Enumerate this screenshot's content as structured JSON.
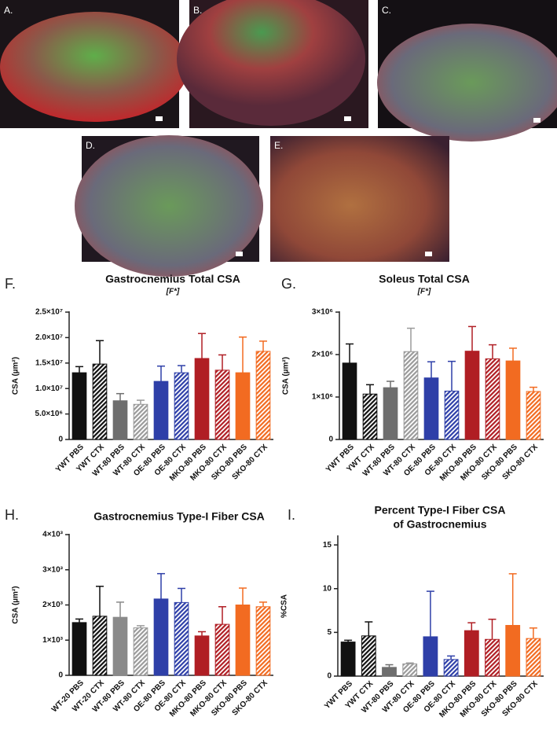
{
  "panels": [
    {
      "label": "A."
    },
    {
      "label": "B."
    },
    {
      "label": "C."
    },
    {
      "label": "D."
    },
    {
      "label": "E."
    }
  ],
  "chart_data": [
    {
      "type": "bar",
      "panel": "F.",
      "title": "Gastrocnemius Total CSA",
      "subtitle": "[F*]",
      "ylabel": "CSA (µm²)",
      "categories": [
        "YWT PBS",
        "YWT CTX",
        "WT-80 PBS",
        "WT-80 CTX",
        "OE-80 PBS",
        "OE-80 CTX",
        "MKO-80 PBS",
        "MKO-80 CTX",
        "SKO-80 PBS",
        "SKO-80 CTX"
      ],
      "values": [
        13100000,
        14800000,
        7600000,
        6900000,
        11400000,
        13100000,
        15900000,
        13600000,
        13100000,
        17300000
      ],
      "errors": [
        1200000,
        4600000,
        1400000,
        800000,
        3000000,
        1400000,
        4900000,
        3000000,
        7000000,
        2000000
      ],
      "colors": [
        "#111111",
        "#111111",
        "#6e6e6e",
        "#9a9a9a",
        "#2e3fa8",
        "#2e3fa8",
        "#b01e24",
        "#b01e24",
        "#f26b21",
        "#f26b21"
      ],
      "hatched": [
        false,
        true,
        false,
        true,
        false,
        true,
        false,
        true,
        false,
        true
      ],
      "ylim": [
        0,
        25000000
      ],
      "yticks": [
        0,
        {
          "value": 5000000,
          "label": "5.0×10⁶"
        },
        {
          "value": 10000000,
          "label": "1.0×10⁷"
        },
        {
          "value": 15000000,
          "label": "1.5×10⁷"
        },
        {
          "value": 20000000,
          "label": "2.0×10⁷"
        },
        {
          "value": 25000000,
          "label": "2.5×10⁷"
        }
      ]
    },
    {
      "type": "bar",
      "panel": "G.",
      "title": "Soleus Total CSA",
      "subtitle": "[F*]",
      "ylabel": "CSA (µm²)",
      "categories": [
        "YWT PBS",
        "YWT CTX",
        "WT-80 PBS",
        "WT-80 CTX",
        "OE-80 PBS",
        "OE-80 CTX",
        "MKO-80 PBS",
        "MKO-80 CTX",
        "SKO-80 PBS",
        "SKO-80 CTX"
      ],
      "values": [
        1800000,
        1070000,
        1220000,
        2070000,
        1450000,
        1140000,
        2080000,
        1900000,
        1850000,
        1130000
      ],
      "errors": [
        450000,
        220000,
        150000,
        550000,
        380000,
        700000,
        580000,
        330000,
        300000,
        100000
      ],
      "colors": [
        "#111111",
        "#111111",
        "#6e6e6e",
        "#9a9a9a",
        "#2e3fa8",
        "#2e3fa8",
        "#b01e24",
        "#b01e24",
        "#f26b21",
        "#f26b21"
      ],
      "hatched": [
        false,
        true,
        false,
        true,
        false,
        true,
        false,
        true,
        false,
        true
      ],
      "ylim": [
        0,
        3000000
      ],
      "yticks": [
        0,
        {
          "value": 1000000,
          "label": "1×10⁶"
        },
        {
          "value": 2000000,
          "label": "2×10⁶"
        },
        {
          "value": 3000000,
          "label": "3×10⁶"
        }
      ]
    },
    {
      "type": "bar",
      "panel": "H.",
      "title": "Gastrocnemius Type-I  Fiber CSA",
      "ylabel": "CSA (µm²)",
      "categories": [
        "WT-20 PBS",
        "WT-20 CTX",
        "WT-80 PBS",
        "WT-80 CTX",
        "OE-80 PBS",
        "OE-80 CTX",
        "MKO-80 PBS",
        "MKO-80 CTX",
        "SKO-80 PBS",
        "SKO-80 CTX"
      ],
      "values": [
        1500,
        1680,
        1650,
        1350,
        2170,
        2070,
        1120,
        1450,
        2000,
        1950
      ],
      "errors": [
        100,
        850,
        430,
        60,
        720,
        400,
        120,
        500,
        480,
        130
      ],
      "colors": [
        "#111111",
        "#111111",
        "#8a8a8a",
        "#9a9a9a",
        "#2e3fa8",
        "#2e3fa8",
        "#b01e24",
        "#b01e24",
        "#f26b21",
        "#f26b21"
      ],
      "hatched": [
        false,
        true,
        false,
        true,
        false,
        true,
        false,
        true,
        false,
        true
      ],
      "ylim": [
        0,
        4000
      ],
      "yticks": [
        0,
        {
          "value": 1000,
          "label": "1×10³"
        },
        {
          "value": 2000,
          "label": "2×10³"
        },
        {
          "value": 3000,
          "label": "3×10³"
        },
        {
          "value": 4000,
          "label": "4×10³"
        }
      ]
    },
    {
      "type": "bar",
      "panel": "I.",
      "title": [
        "Percent Type-I  Fiber CSA",
        "of  Gastrocnemius"
      ],
      "ylabel": "%CSA",
      "categories": [
        "YWT PBS",
        "YWT CTX",
        "WT-80 PBS",
        "WT-80 CTX",
        "OE-80 PBS",
        "OE-80 CTX",
        "MKO-80 PBS",
        "MKO-80 CTX",
        "SKO-80 PBS",
        "SKO-80 CTX"
      ],
      "values": [
        3.9,
        4.6,
        1.0,
        1.4,
        4.5,
        1.9,
        5.2,
        4.2,
        5.8,
        4.3
      ],
      "errors": [
        0.2,
        1.6,
        0.3,
        0.1,
        5.2,
        0.4,
        0.9,
        2.3,
        5.9,
        1.2
      ],
      "colors": [
        "#111111",
        "#111111",
        "#6e6e6e",
        "#9a9a9a",
        "#2e3fa8",
        "#2e3fa8",
        "#b01e24",
        "#b01e24",
        "#f26b21",
        "#f26b21"
      ],
      "hatched": [
        false,
        true,
        false,
        true,
        false,
        true,
        false,
        true,
        false,
        true
      ],
      "ylim": [
        0,
        16
      ],
      "yticks": [
        0,
        5,
        10,
        15
      ]
    }
  ]
}
